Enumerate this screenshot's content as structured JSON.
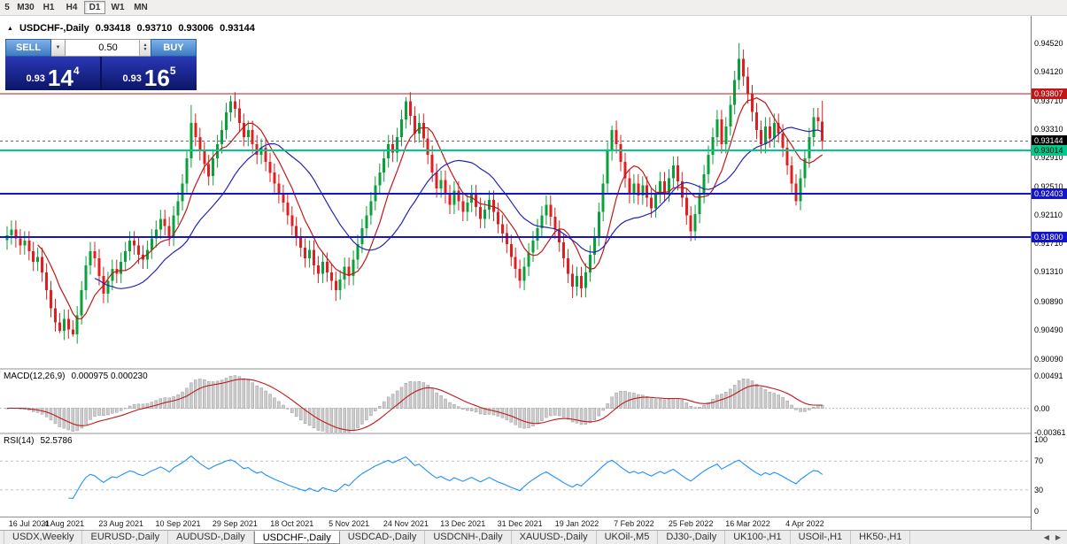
{
  "toolbar": {
    "timeframes": [
      {
        "label": "5",
        "active": false
      },
      {
        "label": "M30",
        "active": false
      },
      {
        "label": "H1",
        "active": false
      },
      {
        "label": "H4",
        "active": false
      },
      {
        "label": "D1",
        "active": true
      },
      {
        "label": "W1",
        "active": false
      },
      {
        "label": "MN",
        "active": false
      }
    ]
  },
  "chart": {
    "marker": "▲",
    "symbol": "USDCHF-,Daily",
    "open": "0.93418",
    "high": "0.93710",
    "low": "0.93006",
    "close": "0.93144"
  },
  "trade_panel": {
    "sell_label": "SELL",
    "buy_label": "BUY",
    "lot_size": "0.50",
    "dropdown_icon": "▼",
    "spinner_up_icon": "▲",
    "spinner_down_icon": "▼",
    "sell": {
      "prefix": "0.93",
      "big": "14",
      "sup": "4"
    },
    "buy": {
      "prefix": "0.93",
      "big": "16",
      "sup": "5"
    }
  },
  "macd": {
    "label": "MACD(12,26,9)",
    "values": "0.000975 0.000230",
    "ticks": [
      {
        "label": "0.00491",
        "value": 0.00491
      },
      {
        "label": "0.00",
        "value": 0
      },
      {
        "label": "-0.00361",
        "value": -0.00361
      }
    ]
  },
  "rsi": {
    "label": "RSI(14)",
    "value": "52.5786",
    "ticks": [
      {
        "label": "100",
        "value": 100
      },
      {
        "label": "70",
        "value": 70
      },
      {
        "label": "30",
        "value": 30
      },
      {
        "label": "0",
        "value": 0
      }
    ]
  },
  "price_scale": {
    "ticks": [
      "0.94520",
      "0.94120",
      "0.93710",
      "0.93310",
      "0.92910",
      "0.92510",
      "0.92110",
      "0.91710",
      "0.91310",
      "0.90890",
      "0.90490",
      "0.90090"
    ],
    "tags": [
      {
        "label": "0.93807",
        "price": 0.93807,
        "bg": "#c01818",
        "fg": "#ffffff"
      },
      {
        "label": "0.93144",
        "price": 0.93144,
        "bg": "#000000",
        "fg": "#ffffff"
      },
      {
        "label": "0.93014",
        "price": 0.93014,
        "bg": "#00c98c",
        "fg": "#000000"
      },
      {
        "label": "0.92403",
        "price": 0.92403,
        "bg": "#1414c8",
        "fg": "#ffffff"
      },
      {
        "label": "0.91800",
        "price": 0.918,
        "bg": "#1414c8",
        "fg": "#ffffff"
      }
    ]
  },
  "tabs": {
    "arrow_left": "◀",
    "arrow_right": "▶",
    "items": [
      {
        "label": "USDX,Weekly",
        "active": false
      },
      {
        "label": "EURUSD-,Daily",
        "active": false
      },
      {
        "label": "AUDUSD-,Daily",
        "active": false
      },
      {
        "label": "USDCHF-,Daily",
        "active": true
      },
      {
        "label": "USDCAD-,Daily",
        "active": false
      },
      {
        "label": "USDCNH-,Daily",
        "active": false
      },
      {
        "label": "XAUUSD-,Daily",
        "active": false
      },
      {
        "label": "UKOil-,M5",
        "active": false
      },
      {
        "label": "DJ30-,Daily",
        "active": false
      },
      {
        "label": "UK100-,H1",
        "active": false
      },
      {
        "label": "USOil-,H1",
        "active": false
      },
      {
        "label": "HK50-,H1",
        "active": false
      }
    ]
  },
  "chart_data": {
    "type": "candlestick",
    "symbol": "USDCHF-",
    "period": "Daily",
    "last_candle": {
      "open": 0.93418,
      "high": 0.9371,
      "low": 0.93006,
      "close": 0.93144
    },
    "price_range": {
      "top": 0.949,
      "bottom": 0.8996
    },
    "first_open": 0.9175,
    "wick": 0.0013,
    "label_every": 13,
    "x_labels": [
      "16 Jul 2021",
      "4 Aug 2021",
      "23 Aug 2021",
      "10 Sep 2021",
      "29 Sep 2021",
      "18 Oct 2021",
      "5 Nov 2021",
      "24 Nov 2021",
      "13 Dec 2021",
      "31 Dec 2021",
      "19 Jan 2022",
      "7 Feb 2022",
      "25 Feb 2022",
      "16 Mar 2022",
      "4 Apr 2022"
    ],
    "closes": [
      0.9182,
      0.919,
      0.9178,
      0.9168,
      0.9175,
      0.916,
      0.9145,
      0.9152,
      0.913,
      0.9105,
      0.908,
      0.906,
      0.9048,
      0.9065,
      0.905,
      0.9043,
      0.907,
      0.9105,
      0.914,
      0.916,
      0.915,
      0.9125,
      0.91,
      0.9118,
      0.9135,
      0.9128,
      0.9145,
      0.916,
      0.9175,
      0.9168,
      0.9155,
      0.9148,
      0.9162,
      0.9178,
      0.919,
      0.9205,
      0.9195,
      0.918,
      0.921,
      0.923,
      0.9255,
      0.929,
      0.934,
      0.932,
      0.93,
      0.9282,
      0.9265,
      0.929,
      0.931,
      0.933,
      0.9355,
      0.937,
      0.936,
      0.934,
      0.932,
      0.933,
      0.931,
      0.9295,
      0.9305,
      0.9285,
      0.927,
      0.9255,
      0.924,
      0.9228,
      0.921,
      0.9195,
      0.918,
      0.9165,
      0.915,
      0.9162,
      0.914,
      0.9128,
      0.9145,
      0.913,
      0.9118,
      0.9105,
      0.912,
      0.9138,
      0.9125,
      0.9148,
      0.917,
      0.9192,
      0.921,
      0.923,
      0.9252,
      0.927,
      0.929,
      0.931,
      0.9298,
      0.932,
      0.9345,
      0.937,
      0.935,
      0.9325,
      0.934,
      0.9318,
      0.9295,
      0.927,
      0.9248,
      0.926,
      0.924,
      0.9225,
      0.9245,
      0.923,
      0.9215,
      0.9228,
      0.924,
      0.9222,
      0.9205,
      0.9218,
      0.9232,
      0.9215,
      0.9198,
      0.9185,
      0.917,
      0.9152,
      0.9135,
      0.9118,
      0.9138,
      0.9158,
      0.9175,
      0.9192,
      0.921,
      0.9225,
      0.9208,
      0.919,
      0.9172,
      0.915,
      0.9128,
      0.911,
      0.9125,
      0.9108,
      0.913,
      0.9155,
      0.918,
      0.9215,
      0.9255,
      0.93,
      0.933,
      0.931,
      0.9285,
      0.9262,
      0.924,
      0.9255,
      0.9238,
      0.9252,
      0.9235,
      0.922,
      0.924,
      0.9258,
      0.9242,
      0.9262,
      0.928,
      0.9258,
      0.9235,
      0.921,
      0.9188,
      0.9212,
      0.924,
      0.9268,
      0.9295,
      0.932,
      0.9345,
      0.931,
      0.9335,
      0.9365,
      0.94,
      0.943,
      0.9405,
      0.938,
      0.9355,
      0.933,
      0.931,
      0.9335,
      0.9318,
      0.934,
      0.9325,
      0.9305,
      0.928,
      0.9255,
      0.923,
      0.9262,
      0.929,
      0.932,
      0.9348,
      0.9342,
      0.93144
    ],
    "overrides": {
      "12": {
        "l": 0.9045
      },
      "15": {
        "l": 0.904
      },
      "42": {
        "h": 0.9365
      },
      "51": {
        "h": 0.9378
      },
      "75": {
        "l": 0.909
      },
      "91": {
        "h": 0.9376
      },
      "117": {
        "l": 0.9108
      },
      "129": {
        "l": 0.9094
      },
      "138": {
        "h": 0.9336
      },
      "156": {
        "l": 0.9174
      },
      "167": {
        "h": 0.9452
      },
      "180": {
        "l": 0.9224
      },
      "186": {
        "o": 0.93418,
        "h": 0.9371,
        "l": 0.93006
      }
    },
    "levels": [
      {
        "price": 0.93807,
        "color": "#c01818",
        "width": 1.2
      },
      {
        "price": 0.93144,
        "color": "#666666",
        "width": 1,
        "dash": true
      },
      {
        "price": 0.93014,
        "color": "#00c98c",
        "width": 2
      },
      {
        "price": 0.92403,
        "color": "#1414c8",
        "width": 2
      },
      {
        "price": 0.918,
        "color": "#1414c8",
        "width": 2
      }
    ],
    "ma": [
      {
        "period": 8,
        "color": "#c01818"
      },
      {
        "period": 21,
        "color": "#2525b4"
      }
    ],
    "macd_range": {
      "top": 0.0058,
      "bottom": -0.00365
    },
    "rsi_levels": [
      70,
      30
    ],
    "colors": {
      "up": "#0aa13a",
      "down": "#e02020",
      "macd_bar": "#cccccc",
      "macd_bar_edge": "#9c9c9c",
      "macd_signal": "#c01818",
      "rsi": "#1e90ff"
    }
  }
}
